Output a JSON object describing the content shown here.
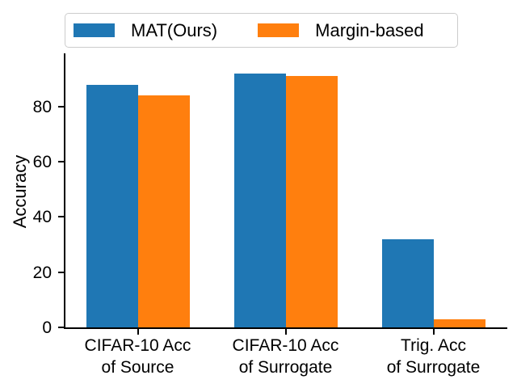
{
  "chart_data": {
    "type": "bar",
    "title": "",
    "xlabel": "",
    "ylabel": "Accuracy",
    "categories": [
      "CIFAR-10 Acc\nof Source",
      "CIFAR-10 Acc\nof Surrogate",
      "Trig. Acc\nof Surrogate"
    ],
    "series": [
      {
        "name": "MAT(Ours)",
        "color": "#1f77b4",
        "values": [
          88,
          92,
          32
        ]
      },
      {
        "name": "Margin-based",
        "color": "#ff7f0e",
        "values": [
          84,
          91,
          3
        ]
      }
    ],
    "yticks": [
      0,
      20,
      40,
      60,
      80
    ],
    "ylim": [
      0,
      99.3
    ],
    "grid": false,
    "legend_position": "top",
    "legend_columns": 2
  }
}
